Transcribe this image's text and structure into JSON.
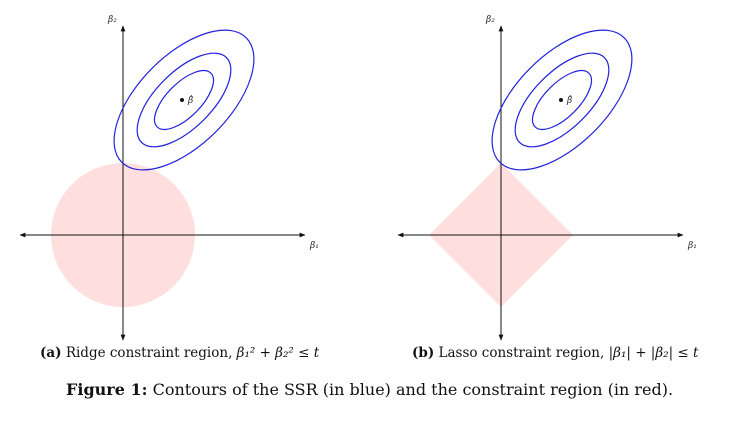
{
  "panel_a": {
    "caption_label": "(a)",
    "caption_text": "Ridge constraint region,",
    "caption_math": "β₁² + β₂² ≤ t",
    "axis_x_label": "β₁",
    "axis_y_label": "β₂",
    "point_label": "β̂",
    "constraint_shape": "disk"
  },
  "panel_b": {
    "caption_label": "(b)",
    "caption_text": "Lasso constraint region,",
    "caption_math": "|β₁| + |β₂| ≤ t",
    "axis_x_label": "β₁",
    "axis_y_label": "β₂",
    "point_label": "β̂",
    "constraint_shape": "diamond"
  },
  "figure_caption": {
    "label": "Figure 1:",
    "text": "Contours of the SSR (in blue) and the constraint region (in red)."
  },
  "colors": {
    "contour": "#2222dd",
    "constraint_fill": "#ffdede",
    "axis": "#111111"
  }
}
